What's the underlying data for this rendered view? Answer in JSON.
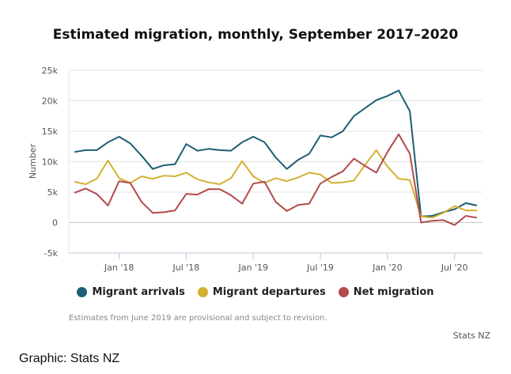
{
  "chart_data": {
    "type": "line",
    "title": "Estimated migration, monthly, September 2017–2020",
    "ylabel": "Number",
    "xlabel": "",
    "ylim": [
      -5000,
      25000
    ],
    "yticks": [
      -5000,
      0,
      5000,
      10000,
      15000,
      20000,
      25000
    ],
    "ytick_labels": [
      "-5k",
      "0",
      "5k",
      "10k",
      "15k",
      "20k",
      "25k"
    ],
    "xticks": [
      {
        "label": "Jan '18",
        "index": 4
      },
      {
        "label": "Jul '18",
        "index": 10
      },
      {
        "label": "Jan '19",
        "index": 16
      },
      {
        "label": "Jul '19",
        "index": 22
      },
      {
        "label": "Jan '20",
        "index": 28
      },
      {
        "label": "Jul '20",
        "index": 34
      }
    ],
    "x": [
      "Sep 2017",
      "Oct 2017",
      "Nov 2017",
      "Dec 2017",
      "Jan 2018",
      "Feb 2018",
      "Mar 2018",
      "Apr 2018",
      "May 2018",
      "Jun 2018",
      "Jul 2018",
      "Aug 2018",
      "Sep 2018",
      "Oct 2018",
      "Nov 2018",
      "Dec 2018",
      "Jan 2019",
      "Feb 2019",
      "Mar 2019",
      "Apr 2019",
      "May 2019",
      "Jun 2019",
      "Jul 2019",
      "Aug 2019",
      "Sep 2019",
      "Oct 2019",
      "Nov 2019",
      "Dec 2019",
      "Jan 2020",
      "Feb 2020",
      "Mar 2020",
      "Apr 2020",
      "May 2020",
      "Jun 2020",
      "Jul 2020",
      "Aug 2020",
      "Sep 2020"
    ],
    "series": [
      {
        "name": "Migrant arrivals",
        "color": "#1d5f73",
        "values": [
          11600,
          11900,
          11900,
          13200,
          14100,
          13000,
          11000,
          8800,
          9400,
          9600,
          12900,
          11800,
          12100,
          11900,
          11800,
          13200,
          14100,
          13200,
          10700,
          8800,
          10300,
          11300,
          14300,
          14000,
          15000,
          17500,
          18800,
          20100,
          20800,
          21700,
          18300,
          1000,
          1100,
          1700,
          2200,
          3200,
          2800
        ]
      },
      {
        "name": "Migrant departures",
        "color": "#d4b031",
        "values": [
          6700,
          6300,
          7200,
          10200,
          7300,
          6500,
          7600,
          7200,
          7700,
          7600,
          8200,
          7100,
          6600,
          6300,
          7300,
          10100,
          7600,
          6500,
          7300,
          6800,
          7400,
          8200,
          7900,
          6500,
          6600,
          6900,
          9500,
          11900,
          9200,
          7200,
          7000,
          1000,
          800,
          1600,
          2700,
          2000,
          2000
        ]
      },
      {
        "name": "Net migration",
        "color": "#b24a4a",
        "values": [
          4900,
          5600,
          4700,
          2800,
          6800,
          6500,
          3400,
          1600,
          1700,
          2000,
          4700,
          4600,
          5500,
          5500,
          4500,
          3100,
          6400,
          6700,
          3400,
          1900,
          2900,
          3100,
          6400,
          7500,
          8400,
          10500,
          9300,
          8200,
          11600,
          14500,
          11300,
          0,
          300,
          400,
          -400,
          1100,
          800
        ]
      }
    ]
  },
  "footnote": "Estimates from June 2019 are provisional and subject to revision.",
  "source": "Stats NZ",
  "credit": "Graphic: Stats NZ"
}
